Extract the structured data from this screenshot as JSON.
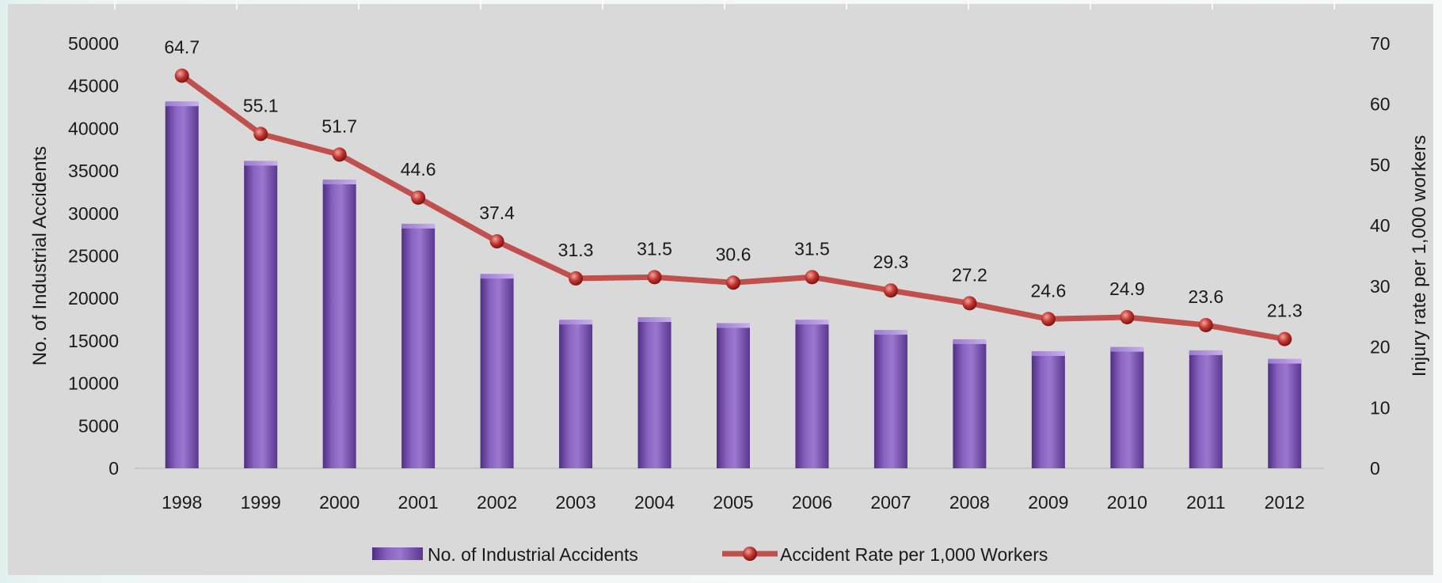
{
  "chart_data": {
    "type": "bar",
    "categories": [
      "1998",
      "1999",
      "2000",
      "2001",
      "2002",
      "2003",
      "2004",
      "2005",
      "2006",
      "2007",
      "2008",
      "2009",
      "2010",
      "2011",
      "2012"
    ],
    "series": [
      {
        "name": "No. of Industrial Accidents",
        "type": "bar",
        "axis": "left",
        "color": "#7a52b0",
        "values": [
          43000,
          36000,
          33800,
          28600,
          22700,
          17300,
          17600,
          16900,
          17300,
          16100,
          15000,
          13600,
          14100,
          13700,
          12700
        ]
      },
      {
        "name": "Accident Rate per 1,000 Workers",
        "type": "line",
        "axis": "right",
        "color": "#c0504d",
        "values": [
          64.7,
          55.1,
          51.7,
          44.6,
          37.4,
          31.3,
          31.5,
          30.6,
          31.5,
          29.3,
          27.2,
          24.6,
          24.9,
          23.6,
          21.3
        ],
        "data_labels": [
          "64.7",
          "55.1",
          "51.7",
          "44.6",
          "37.4",
          "31.3",
          "31.5",
          "30.6",
          "31.5",
          "29.3",
          "27.2",
          "24.6",
          "24.9",
          "23.6",
          "21.3"
        ]
      }
    ],
    "ylabel": "No. of Industrial Accidents",
    "ylabel_right": "Injury rate per 1,000 workers",
    "ylim": [
      0,
      50000
    ],
    "yticks": [
      0,
      5000,
      10000,
      15000,
      20000,
      25000,
      30000,
      35000,
      40000,
      45000,
      50000
    ],
    "ylim_right": [
      0,
      70
    ],
    "yticks_right": [
      0,
      10,
      20,
      30,
      40,
      50,
      60,
      70
    ],
    "grid": false,
    "legend_position": "bottom",
    "background_color": "#d9d9d9"
  }
}
